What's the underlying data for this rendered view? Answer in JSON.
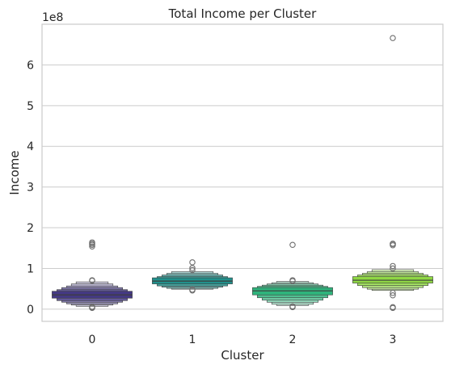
{
  "chart_data": {
    "type": "boxen",
    "title": "Total Income per Cluster",
    "xlabel": "Cluster",
    "ylabel": "Income",
    "y_offset_label": "1e8",
    "y_scale": 100000000,
    "categories": [
      "0",
      "1",
      "2",
      "3"
    ],
    "ylim": [
      -30000000,
      700000000
    ],
    "yticks": [
      0,
      100000000,
      200000000,
      300000000,
      400000000,
      500000000,
      600000000
    ],
    "ytick_labels": [
      "0",
      "1",
      "2",
      "3",
      "4",
      "5",
      "6"
    ],
    "grid": true,
    "colors": [
      "#443983",
      "#21918c",
      "#2fb47c",
      "#8fd744"
    ],
    "boxes": [
      {
        "cluster": "0",
        "median": 35000000,
        "levels": [
          [
            27000000,
            44000000
          ],
          [
            21000000,
            48000000
          ],
          [
            17000000,
            53000000
          ],
          [
            13000000,
            57000000
          ],
          [
            10000000,
            62000000
          ],
          [
            7000000,
            67000000
          ]
        ],
        "outliers": [
          3000000,
          4000000,
          6000000,
          70000000,
          71000000,
          154000000,
          158000000,
          161000000,
          164000000
        ]
      },
      {
        "cluster": "1",
        "median": 69000000,
        "levels": [
          [
            62000000,
            77000000
          ],
          [
            57000000,
            80000000
          ],
          [
            54000000,
            84000000
          ],
          [
            51000000,
            88000000
          ],
          [
            49000000,
            92000000
          ]
        ],
        "outliers": [
          46000000,
          48000000,
          96000000,
          101000000,
          115000000
        ]
      },
      {
        "cluster": "2",
        "median": 45000000,
        "levels": [
          [
            35000000,
            53000000
          ],
          [
            28000000,
            56000000
          ],
          [
            22000000,
            59000000
          ],
          [
            17000000,
            62000000
          ],
          [
            12000000,
            65000000
          ],
          [
            9000000,
            68000000
          ]
        ],
        "outliers": [
          5000000,
          7000000,
          69000000,
          71000000,
          158000000
        ]
      },
      {
        "cluster": "3",
        "median": 71000000,
        "levels": [
          [
            64000000,
            80000000
          ],
          [
            58000000,
            84000000
          ],
          [
            53000000,
            88000000
          ],
          [
            49000000,
            92000000
          ],
          [
            46000000,
            97000000
          ]
        ],
        "outliers": [
          3000000,
          5000000,
          34000000,
          40000000,
          100000000,
          106000000,
          157000000,
          160000000,
          161000000,
          666000000
        ]
      }
    ]
  }
}
